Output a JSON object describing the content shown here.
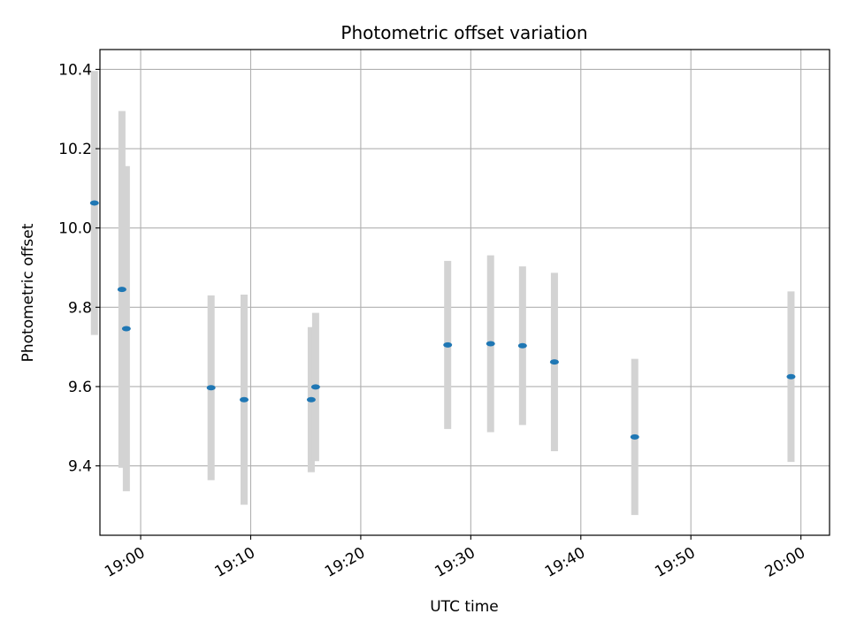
{
  "chart_data": {
    "type": "scatter",
    "title": "Photometric offset variation",
    "xlabel": "UTC time",
    "ylabel": "Photometric offset",
    "x_ticks": [
      "19:00",
      "19:10",
      "19:20",
      "19:30",
      "19:40",
      "19:50",
      "20:00"
    ],
    "y_ticks": [
      9.4,
      9.6,
      9.8,
      10.0,
      10.2,
      10.4
    ],
    "xlim": [
      "18:56:18",
      "20:02:36"
    ],
    "ylim": [
      9.225,
      10.45
    ],
    "grid": true,
    "errorbar_color": "#d3d3d3",
    "marker_color": "#1f77b4",
    "points": [
      {
        "time": "18:55:48",
        "y": 10.063,
        "err": 0.333
      },
      {
        "time": "18:58:18",
        "y": 9.845,
        "err": 0.45
      },
      {
        "time": "18:58:42",
        "y": 9.746,
        "err": 0.41
      },
      {
        "time": "19:06:24",
        "y": 9.597,
        "err": 0.233
      },
      {
        "time": "19:09:24",
        "y": 9.567,
        "err": 0.265
      },
      {
        "time": "19:15:30",
        "y": 9.567,
        "err": 0.183
      },
      {
        "time": "19:15:54",
        "y": 9.599,
        "err": 0.187
      },
      {
        "time": "19:27:54",
        "y": 9.705,
        "err": 0.212
      },
      {
        "time": "19:31:48",
        "y": 9.708,
        "err": 0.223
      },
      {
        "time": "19:34:42",
        "y": 9.703,
        "err": 0.2
      },
      {
        "time": "19:37:36",
        "y": 9.662,
        "err": 0.225
      },
      {
        "time": "19:44:54",
        "y": 9.473,
        "err": 0.197
      },
      {
        "time": "19:59:06",
        "y": 9.625,
        "err": 0.215
      }
    ]
  }
}
